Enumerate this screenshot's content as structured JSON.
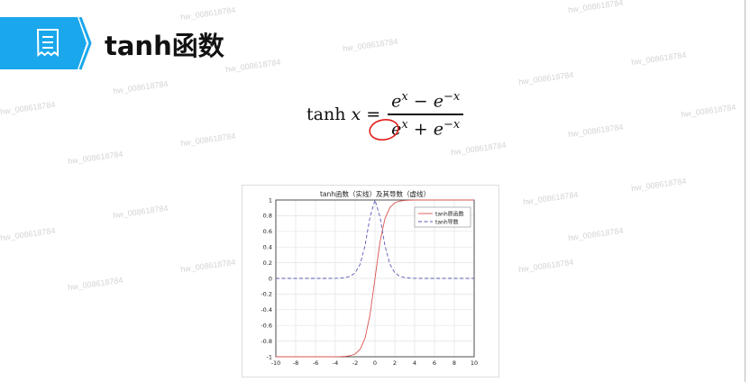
{
  "header": {
    "title": "tanh函数",
    "icon": "receipt-icon",
    "accent": "#1aa7ec"
  },
  "watermark": "hw_008618784",
  "formula": {
    "lhs": "tanh",
    "lhs_var": "x",
    "eq": "=",
    "numerator": "e^x − e^−x",
    "num_a": "e",
    "num_a_exp": "x",
    "num_op": " − e",
    "num_b_exp": "−x",
    "den_a": "e",
    "den_a_exp": "x",
    "den_op": " + e",
    "den_b_exp": "−x",
    "annotation_color": "#e0201b"
  },
  "chart_data": {
    "type": "line",
    "title": "tanh函数（实线）及其导数（虚线）",
    "xlim": [
      -10,
      10
    ],
    "ylim": [
      -1,
      1
    ],
    "grid": true,
    "legend_placement": "top-right",
    "xticks": [
      -10,
      -8,
      -6,
      -4,
      -2,
      0,
      2,
      4,
      6,
      8,
      10
    ],
    "yticks": [
      -1,
      -0.8,
      -0.6,
      -0.4,
      -0.2,
      0,
      0.2,
      0.4,
      0.6,
      0.8,
      1
    ],
    "x": [
      -10,
      -5,
      -4.5,
      -4,
      -3.5,
      -3,
      -2.5,
      -2,
      -1.5,
      -1,
      -0.5,
      0,
      0.5,
      1,
      1.5,
      2,
      2.5,
      3,
      3.5,
      4,
      4.5,
      5,
      10
    ],
    "series": [
      {
        "name": "tanh原函数",
        "color": "#d9534f",
        "dash": "solid",
        "values": [
          -1,
          -1,
          -1,
          -0.999,
          -0.998,
          -0.995,
          -0.987,
          -0.964,
          -0.905,
          -0.762,
          -0.462,
          0,
          0.462,
          0.762,
          0.905,
          0.964,
          0.987,
          0.995,
          0.998,
          0.999,
          1,
          1,
          1
        ]
      },
      {
        "name": "tanh导数",
        "color": "#5a5ab8",
        "dash": "dashed",
        "values": [
          0,
          0,
          0,
          0.001,
          0.004,
          0.01,
          0.027,
          0.071,
          0.181,
          0.42,
          0.786,
          1,
          0.786,
          0.42,
          0.181,
          0.071,
          0.027,
          0.01,
          0.004,
          0.001,
          0,
          0,
          0
        ]
      }
    ]
  }
}
